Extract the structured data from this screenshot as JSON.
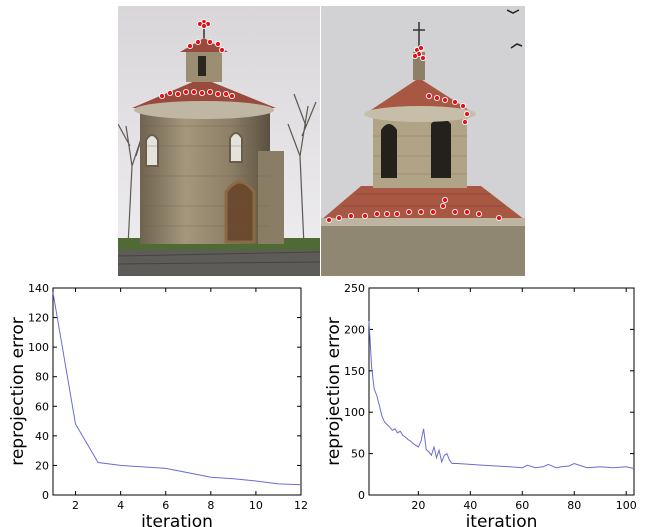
{
  "photos": [
    {
      "subject": "round stone rotunda with red tiled roof, wide view",
      "point_color": "#e0141e"
    },
    {
      "subject": "close-up of rotunda lantern tower and roof",
      "point_color": "#e0141e"
    }
  ],
  "chart_data": [
    {
      "type": "line",
      "title": "",
      "xlabel": "iteration",
      "ylabel": "reprojection error",
      "xlim": [
        1,
        12
      ],
      "ylim": [
        0,
        140
      ],
      "xticks": [
        2,
        4,
        6,
        8,
        10,
        12
      ],
      "yticks": [
        0,
        20,
        40,
        60,
        80,
        100,
        120,
        140
      ],
      "line_color": "#6b6bd6",
      "grid": false,
      "series": [
        {
          "x": [
            1,
            2,
            3,
            4,
            5,
            6,
            7,
            8,
            9,
            10,
            11,
            12
          ],
          "values": [
            137,
            48,
            22,
            20,
            19,
            18,
            15,
            12,
            11,
            9.5,
            7.5,
            7
          ]
        }
      ]
    },
    {
      "type": "line",
      "title": "",
      "xlabel": "iteration",
      "ylabel": "reprojection error",
      "xlim": [
        1,
        103
      ],
      "ylim": [
        0,
        250
      ],
      "xticks": [
        20,
        40,
        60,
        80,
        100
      ],
      "yticks": [
        0,
        50,
        100,
        150,
        200,
        250
      ],
      "line_color": "#6b6bd6",
      "grid": false,
      "series": [
        {
          "x": [
            1,
            2,
            3,
            4,
            5,
            6,
            7,
            8,
            9,
            10,
            11,
            12,
            13,
            14,
            15,
            16,
            17,
            18,
            19,
            20,
            21,
            22,
            23,
            24,
            25,
            26,
            27,
            28,
            29,
            30,
            31,
            32,
            33,
            35,
            40,
            45,
            50,
            55,
            60,
            62,
            65,
            68,
            70,
            73,
            75,
            78,
            80,
            85,
            90,
            95,
            100,
            103
          ],
          "values": [
            210,
            155,
            128,
            120,
            108,
            95,
            88,
            85,
            82,
            78,
            80,
            75,
            77,
            72,
            70,
            67,
            65,
            62,
            60,
            58,
            65,
            80,
            55,
            52,
            48,
            58,
            45,
            54,
            40,
            48,
            50,
            42,
            38,
            38,
            37,
            36,
            35,
            34,
            33,
            36,
            33,
            34,
            37,
            33,
            34,
            35,
            38,
            33,
            34,
            33,
            34,
            32
          ]
        }
      ]
    }
  ]
}
